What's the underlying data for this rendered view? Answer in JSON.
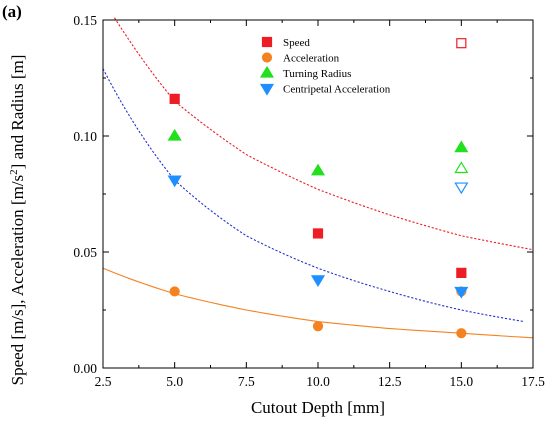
{
  "chart_data": {
    "type": "scatter",
    "panel_label": "(a)",
    "xlabel": "Cutout Depth [mm]",
    "ylabel": "Speed [m/s], Acceleration [m/s^2] and Radius [m]",
    "ylabel_parts": {
      "before": "Speed [m/s], Acceleration [m/s",
      "sup": "2",
      "after": "] and Radius [m]"
    },
    "xlim": [
      2.5,
      17.5
    ],
    "ylim": [
      0.0,
      0.15
    ],
    "xticks": [
      "2.5",
      "5.0",
      "7.5",
      "10.0",
      "12.5",
      "15.0",
      "17.5"
    ],
    "yticks": [
      "0.00",
      "0.05",
      "0.10",
      "0.15"
    ],
    "legend_position": "top-center",
    "series": [
      {
        "name": "Speed",
        "color": "#ee1c25",
        "marker": "square",
        "points": [
          [
            5.0,
            0.116
          ],
          [
            10.0,
            0.058
          ],
          [
            15.0,
            0.041
          ]
        ],
        "open_points": [
          [
            15.0,
            0.14
          ]
        ]
      },
      {
        "name": "Acceleration",
        "color": "#f58220",
        "marker": "circle",
        "points": [
          [
            5.0,
            0.033
          ],
          [
            10.0,
            0.018
          ],
          [
            15.0,
            0.015
          ]
        ],
        "open_points": [
          [
            15.0,
            0.033
          ]
        ]
      },
      {
        "name": "Turning Radius",
        "color": "#22e01e",
        "marker": "triangle-up",
        "points": [
          [
            5.0,
            0.1
          ],
          [
            10.0,
            0.085
          ],
          [
            15.0,
            0.095
          ]
        ],
        "open_points": [
          [
            15.0,
            0.086
          ]
        ]
      },
      {
        "name": "Centripetal Acceleration",
        "color": "#1f8fff",
        "marker": "triangle-down",
        "points": [
          [
            5.0,
            0.081
          ],
          [
            10.0,
            0.038
          ],
          [
            15.0,
            0.033
          ]
        ],
        "open_points": [
          [
            15.0,
            0.078
          ]
        ]
      }
    ],
    "fits": [
      {
        "series": "Speed",
        "color": "#ee1c25",
        "style": "dotted",
        "x_range": [
          2.9,
          17.5
        ],
        "points": [
          [
            2.9,
            0.151
          ],
          [
            5.0,
            0.115
          ],
          [
            7.5,
            0.092
          ],
          [
            10.0,
            0.077
          ],
          [
            12.5,
            0.066
          ],
          [
            15.0,
            0.057
          ],
          [
            17.5,
            0.051
          ]
        ]
      },
      {
        "series": "Centripetal Acceleration",
        "color": "#2233cc",
        "style": "dotted",
        "x_range": [
          2.5,
          17.2
        ],
        "points": [
          [
            2.5,
            0.129
          ],
          [
            5.0,
            0.081
          ],
          [
            7.5,
            0.057
          ],
          [
            10.0,
            0.043
          ],
          [
            12.5,
            0.033
          ],
          [
            15.0,
            0.025
          ],
          [
            17.2,
            0.02
          ]
        ]
      },
      {
        "series": "Acceleration",
        "color": "#f58220",
        "style": "solid",
        "x_range": [
          2.5,
          17.5
        ],
        "points": [
          [
            2.5,
            0.043
          ],
          [
            5.0,
            0.032
          ],
          [
            7.5,
            0.025
          ],
          [
            10.0,
            0.02
          ],
          [
            12.5,
            0.017
          ],
          [
            15.0,
            0.015
          ],
          [
            17.5,
            0.013
          ]
        ]
      }
    ]
  }
}
